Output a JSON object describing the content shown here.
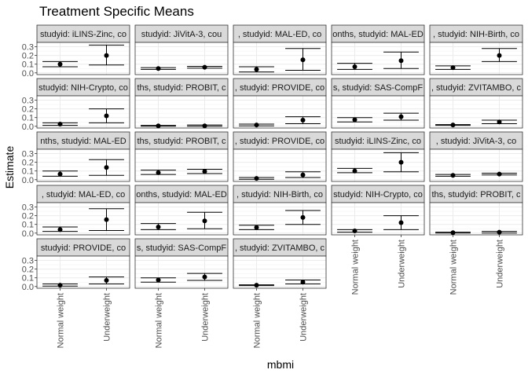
{
  "chart_data": {
    "type": "scatter",
    "title": "Treatment Specific Means",
    "xlabel": "mbmi",
    "ylabel": "Estimate",
    "categories": [
      "Normal weight",
      "Underweight"
    ],
    "ylim": [
      -0.02,
      0.35
    ],
    "yticks": [
      0.0,
      0.1,
      0.2,
      0.3
    ],
    "ytick_labels": [
      "0.0",
      "0.1",
      "0.2",
      "0.3"
    ],
    "grid": true,
    "layout": {
      "rows": 5,
      "cols": 5
    },
    "panels": [
      {
        "strip": "studyid: iLINS-Zinc, co",
        "points": [
          {
            "est": 0.1,
            "lo": 0.07,
            "hi": 0.13
          },
          {
            "est": 0.2,
            "lo": 0.09,
            "hi": 0.32
          }
        ]
      },
      {
        "strip": "studyid: JiVitA-3, cou",
        "points": [
          {
            "est": 0.05,
            "lo": 0.04,
            "hi": 0.06
          },
          {
            "est": 0.065,
            "lo": 0.055,
            "hi": 0.075
          }
        ]
      },
      {
        "strip": ", studyid: MAL-ED, co",
        "points": [
          {
            "est": 0.04,
            "lo": 0.01,
            "hi": 0.07
          },
          {
            "est": 0.15,
            "lo": 0.03,
            "hi": 0.28
          }
        ]
      },
      {
        "strip": "onths, studyid: MAL-ED",
        "points": [
          {
            "est": 0.07,
            "lo": 0.04,
            "hi": 0.11
          },
          {
            "est": 0.14,
            "lo": 0.05,
            "hi": 0.24
          }
        ]
      },
      {
        "strip": ", studyid: NIH-Birth, co",
        "points": [
          {
            "est": 0.06,
            "lo": 0.04,
            "hi": 0.08
          },
          {
            "est": 0.2,
            "lo": 0.13,
            "hi": 0.28
          }
        ]
      },
      {
        "strip": "studyid: NIH-Crypto, co",
        "points": [
          {
            "est": 0.025,
            "lo": 0.01,
            "hi": 0.04
          },
          {
            "est": 0.12,
            "lo": 0.04,
            "hi": 0.2
          }
        ]
      },
      {
        "strip": "ths, studyid: PROBIT, c",
        "points": [
          {
            "est": 0.005,
            "lo": 0.0,
            "hi": 0.01
          },
          {
            "est": 0.005,
            "lo": 0.0,
            "hi": 0.015
          }
        ]
      },
      {
        "strip": ", studyid: PROVIDE, co",
        "points": [
          {
            "est": 0.015,
            "lo": 0.005,
            "hi": 0.025
          },
          {
            "est": 0.07,
            "lo": 0.03,
            "hi": 0.11
          }
        ]
      },
      {
        "strip": "s, studyid: SAS-CompF",
        "points": [
          {
            "est": 0.075,
            "lo": 0.05,
            "hi": 0.1
          },
          {
            "est": 0.11,
            "lo": 0.07,
            "hi": 0.15
          }
        ]
      },
      {
        "strip": ", studyid: ZVITAMBO, c",
        "points": [
          {
            "est": 0.015,
            "lo": 0.01,
            "hi": 0.02
          },
          {
            "est": 0.05,
            "lo": 0.03,
            "hi": 0.07
          }
        ]
      },
      {
        "strip": "nths, studyid: MAL-ED",
        "points": [
          {
            "est": 0.065,
            "lo": 0.04,
            "hi": 0.1
          },
          {
            "est": 0.14,
            "lo": 0.05,
            "hi": 0.23
          }
        ]
      },
      {
        "strip": "ths, studyid: PROBIT, c",
        "points": [
          {
            "est": 0.08,
            "lo": 0.06,
            "hi": 0.11
          },
          {
            "est": 0.095,
            "lo": 0.07,
            "hi": 0.12
          }
        ]
      },
      {
        "strip": ", studyid: PROVIDE, co",
        "points": [
          {
            "est": 0.015,
            "lo": 0.005,
            "hi": 0.025
          },
          {
            "est": 0.055,
            "lo": 0.025,
            "hi": 0.09
          }
        ]
      },
      {
        "strip": "studyid: iLINS-Zinc, co",
        "points": [
          {
            "est": 0.1,
            "lo": 0.08,
            "hi": 0.13
          },
          {
            "est": 0.2,
            "lo": 0.09,
            "hi": 0.31
          }
        ]
      },
      {
        "strip": ", studyid: JiVitA-3, co",
        "points": [
          {
            "est": 0.05,
            "lo": 0.04,
            "hi": 0.06
          },
          {
            "est": 0.065,
            "lo": 0.055,
            "hi": 0.075
          }
        ]
      },
      {
        "strip": ", studyid: MAL-ED, co",
        "points": [
          {
            "est": 0.04,
            "lo": 0.02,
            "hi": 0.07
          },
          {
            "est": 0.155,
            "lo": 0.03,
            "hi": 0.28
          }
        ]
      },
      {
        "strip": "onths, studyid: MAL-ED",
        "points": [
          {
            "est": 0.07,
            "lo": 0.04,
            "hi": 0.11
          },
          {
            "est": 0.14,
            "lo": 0.05,
            "hi": 0.24
          }
        ]
      },
      {
        "strip": ", studyid: NIH-Birth, co",
        "points": [
          {
            "est": 0.065,
            "lo": 0.04,
            "hi": 0.09
          },
          {
            "est": 0.18,
            "lo": 0.1,
            "hi": 0.26
          }
        ]
      },
      {
        "strip": "studyid: NIH-Crypto, co",
        "points": [
          {
            "est": 0.025,
            "lo": 0.01,
            "hi": 0.04
          },
          {
            "est": 0.12,
            "lo": 0.04,
            "hi": 0.2
          }
        ]
      },
      {
        "strip": "ths, studyid: PROBIT, c",
        "points": [
          {
            "est": 0.005,
            "lo": 0.0,
            "hi": 0.01
          },
          {
            "est": 0.01,
            "lo": 0.0,
            "hi": 0.02
          }
        ]
      },
      {
        "strip": "studyid: PROVIDE, co",
        "points": [
          {
            "est": 0.015,
            "lo": 0.005,
            "hi": 0.03
          },
          {
            "est": 0.07,
            "lo": 0.03,
            "hi": 0.11
          }
        ]
      },
      {
        "strip": "s, studyid: SAS-CompF",
        "points": [
          {
            "est": 0.075,
            "lo": 0.05,
            "hi": 0.1
          },
          {
            "est": 0.11,
            "lo": 0.07,
            "hi": 0.15
          }
        ]
      },
      {
        "strip": ", studyid: ZVITAMBO, c",
        "points": [
          {
            "est": 0.015,
            "lo": 0.01,
            "hi": 0.02
          },
          {
            "est": 0.05,
            "lo": 0.03,
            "hi": 0.075
          }
        ]
      }
    ]
  }
}
